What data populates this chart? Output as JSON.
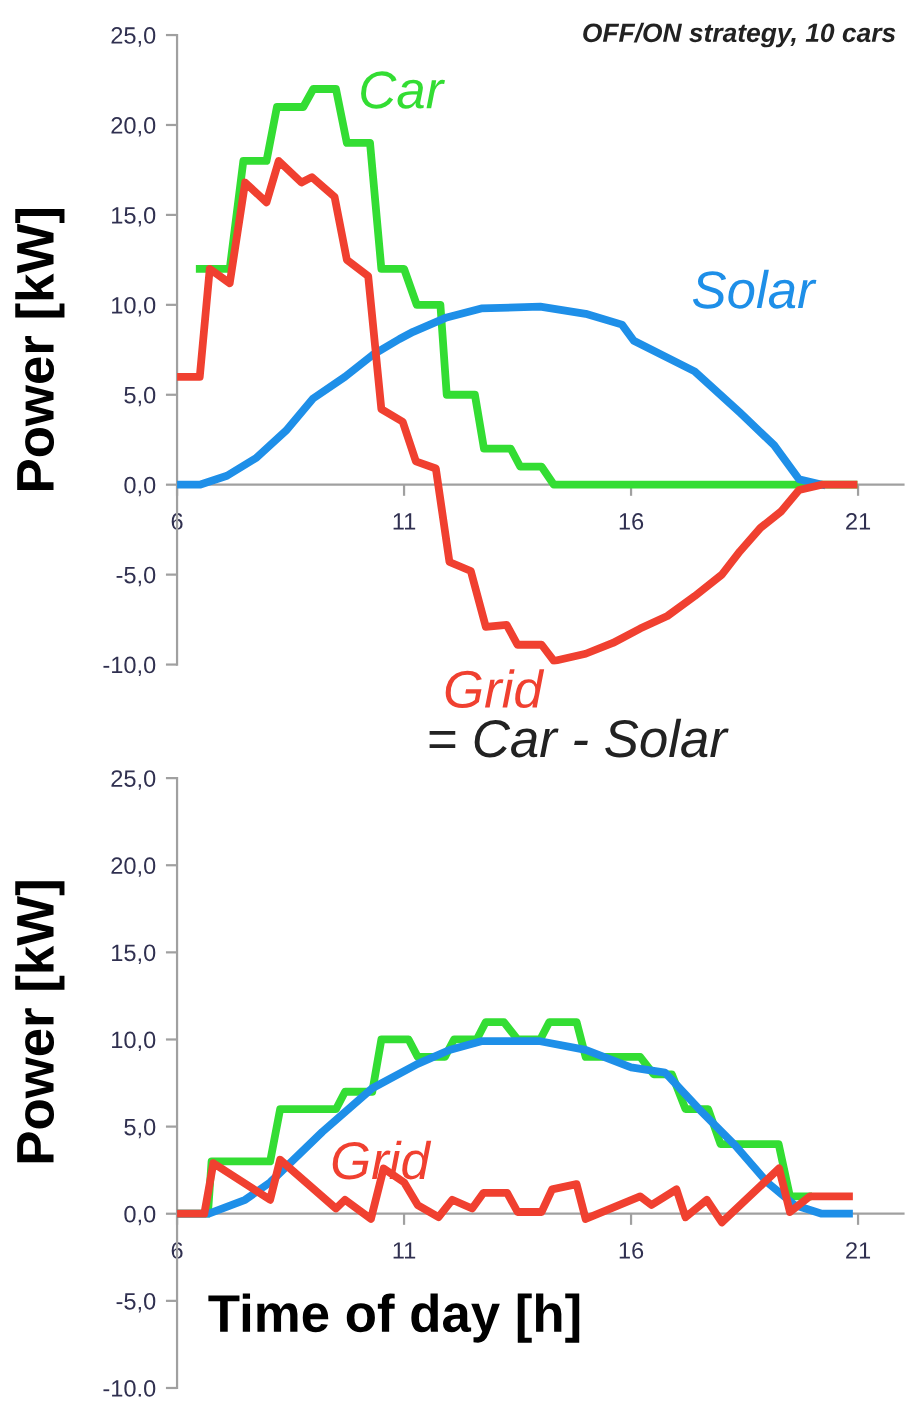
{
  "chart_data": [
    {
      "type": "line",
      "title": "OFF/ON strategy, 10 cars",
      "ylabel": "Power [kW]",
      "xlim": [
        6,
        22
      ],
      "xticks": [
        6,
        11,
        16,
        21
      ],
      "ylim": [
        -10,
        25
      ],
      "yticks": [
        {
          "value": 25,
          "label": "25,0"
        },
        {
          "value": 20,
          "label": "20,0"
        },
        {
          "value": 15,
          "label": "15,0"
        },
        {
          "value": 10,
          "label": "10,0"
        },
        {
          "value": 5,
          "label": "5,0"
        },
        {
          "value": 0,
          "label": "0,0"
        },
        {
          "value": -5,
          "label": "-5,0"
        },
        {
          "value": -10,
          "label": "-10,0"
        }
      ],
      "grid": false,
      "legend": false,
      "line_style": "solid",
      "marker": "none",
      "annotations": [
        "= Car - Solar"
      ],
      "series": [
        {
          "name": "Car",
          "color": "#33dd33",
          "x": [
            6.5,
            7.16,
            7.46,
            7.97,
            8.2,
            8.78,
            9.0,
            9.5,
            9.74,
            10.25,
            10.5,
            11.0,
            11.28,
            11.8,
            11.94,
            12.56,
            12.76,
            13.35,
            13.56,
            14.03,
            14.3,
            20.9
          ],
          "values": [
            12,
            12,
            18,
            18,
            21,
            21,
            22,
            22,
            19,
            19,
            12,
            12,
            10,
            10,
            5,
            5,
            2,
            2,
            1,
            1,
            0,
            0
          ]
        },
        {
          "name": "Solar",
          "color": "#1e8fe8",
          "x": [
            6,
            6.5,
            7.1,
            7.75,
            8.4,
            9.0,
            9.7,
            10.3,
            10.9,
            11.2,
            11.94,
            12.7,
            14.0,
            15.0,
            15.8,
            16.06,
            17.4,
            18.4,
            19.15,
            19.7,
            20.2
          ],
          "values": [
            0,
            0,
            0.5,
            1.5,
            3.0,
            4.8,
            6.0,
            7.2,
            8.1,
            8.5,
            9.3,
            9.8,
            9.9,
            9.5,
            8.9,
            8.0,
            6.3,
            4.0,
            2.2,
            0.3,
            0
          ]
        },
        {
          "name": "Grid",
          "color": "#f04030",
          "x": [
            6,
            6.5,
            6.72,
            7.16,
            7.5,
            7.97,
            8.24,
            8.74,
            8.97,
            9.47,
            9.74,
            10.21,
            10.5,
            10.97,
            11.26,
            11.7,
            12.0,
            12.47,
            12.8,
            13.26,
            13.5,
            14.03,
            14.3,
            15.0,
            15.6,
            16.2,
            16.8,
            17.4,
            18.0,
            18.4,
            18.85,
            19.3,
            19.7,
            20.2,
            20.9
          ],
          "values": [
            6,
            6,
            12,
            11.2,
            16.8,
            15.7,
            18,
            16.8,
            17.1,
            16,
            12.5,
            11.6,
            4.2,
            3.5,
            1.3,
            0.9,
            -4.3,
            -4.8,
            -7.9,
            -7.8,
            -8.9,
            -8.9,
            -9.8,
            -9.4,
            -8.8,
            -8.0,
            -7.3,
            -6.2,
            -5.0,
            -3.7,
            -2.4,
            -1.5,
            -0.3,
            0,
            0
          ]
        }
      ]
    },
    {
      "type": "line",
      "ylabel": "Power [kW]",
      "xlabel": "Time of day [h]",
      "xlim": [
        6,
        22
      ],
      "xticks": [
        6,
        11,
        16,
        21
      ],
      "ylim": [
        -10,
        25
      ],
      "yticks": [
        {
          "value": 25,
          "label": "25,0"
        },
        {
          "value": 20,
          "label": "20,0"
        },
        {
          "value": 15,
          "label": "15,0"
        },
        {
          "value": 10,
          "label": "10,0"
        },
        {
          "value": 5,
          "label": "5,0"
        },
        {
          "value": 0,
          "label": "0,0"
        },
        {
          "value": -5,
          "label": "-5,0"
        },
        {
          "value": -10,
          "label": "-10.0"
        }
      ],
      "grid": false,
      "legend": false,
      "line_style": "solid",
      "marker": "none",
      "series": [
        {
          "color": "#33dd33",
          "x": [
            6,
            6.68,
            6.76,
            8.05,
            8.27,
            9.5,
            9.7,
            10.3,
            10.5,
            11.1,
            11.3,
            11.9,
            12.1,
            12.6,
            12.8,
            13.2,
            13.5,
            14.0,
            14.2,
            14.8,
            15.0,
            16.2,
            16.5,
            16.9,
            17.2,
            17.7,
            17.97,
            19.25,
            19.5,
            19.9
          ],
          "values": [
            0,
            0,
            3,
            3,
            6,
            6,
            7,
            7,
            10,
            10,
            9,
            9,
            10,
            10,
            11,
            11,
            10,
            10,
            11,
            11,
            9,
            9,
            8,
            8,
            6,
            6,
            4,
            4,
            1,
            1
          ]
        },
        {
          "color": "#1e8fe8",
          "x": [
            6,
            6.7,
            7.5,
            8.05,
            9.2,
            10.3,
            11.3,
            12.0,
            12.7,
            14.0,
            15.0,
            16.0,
            16.75,
            17.5,
            18.3,
            19.0,
            19.6,
            20.2,
            20.8
          ],
          "values": [
            0,
            0,
            0.8,
            1.8,
            4.7,
            7.2,
            8.6,
            9.4,
            9.9,
            9.9,
            9.4,
            8.4,
            8.1,
            6.0,
            3.9,
            1.8,
            0.5,
            0,
            0
          ]
        },
        {
          "name": "Grid",
          "color": "#f04030",
          "x": [
            6,
            6.6,
            6.8,
            8.05,
            8.27,
            9.5,
            9.7,
            10.27,
            10.55,
            11.0,
            11.3,
            11.76,
            12.06,
            12.5,
            12.75,
            13.27,
            13.5,
            14.03,
            14.26,
            14.8,
            15.0,
            16.2,
            16.45,
            17.0,
            17.2,
            17.67,
            18.0,
            19.26,
            19.5,
            19.94,
            20.8
          ],
          "values": [
            0,
            0,
            2.9,
            0.8,
            3.1,
            0.3,
            0.8,
            -0.3,
            2.6,
            1.8,
            0.5,
            -0.2,
            0.8,
            0.3,
            1.2,
            1.2,
            0.1,
            0.1,
            1.4,
            1.7,
            -0.3,
            1.0,
            0.5,
            1.4,
            -0.2,
            0.8,
            -0.5,
            2.6,
            0.1,
            1.0,
            1.0
          ]
        }
      ]
    }
  ]
}
